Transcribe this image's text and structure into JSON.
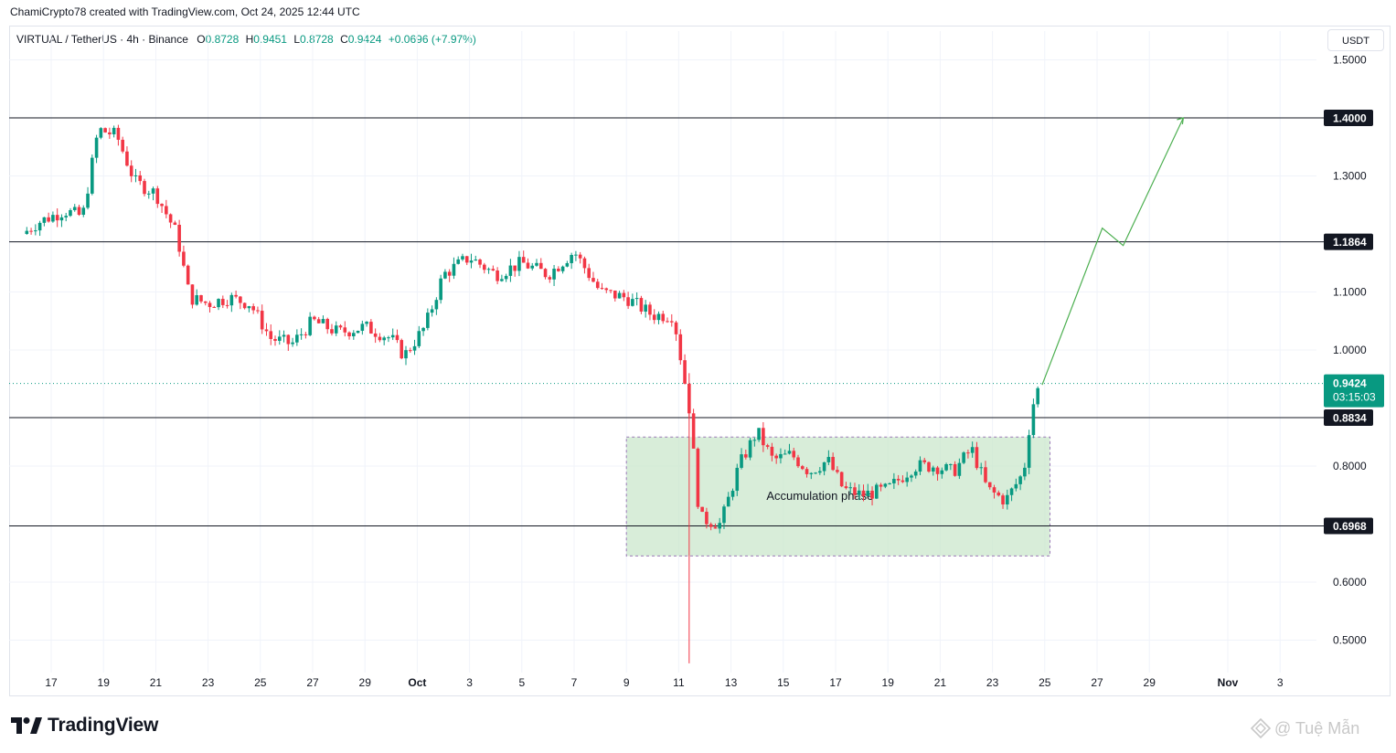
{
  "header": {
    "creator": "ChamiCrypto78 created with TradingView.com, Oct 24, 2025 12:44 UTC"
  },
  "legend": {
    "symbol": "VIRTUAL / TetherUS · 4h · Binance",
    "o_label": "O",
    "o_value": "0.8728",
    "h_label": "H",
    "h_value": "0.9451",
    "l_label": "L",
    "l_value": "0.8728",
    "c_label": "C",
    "c_value": "0.9424",
    "change": "+0.0696 (+7.97%)"
  },
  "currency_button": "USDT",
  "branding": {
    "logo_text": "TradingView"
  },
  "watermark": {
    "text": "@ Tuệ Mẫn"
  },
  "colors": {
    "up": "#089981",
    "down": "#f23645",
    "projection": "#4caf50",
    "zone_fill": "#c8e6c9",
    "zone_border": "#9c7ab8"
  },
  "chart_data": {
    "type": "candlestick",
    "symbol": "VIRTUAL/USDT",
    "timeframe": "4h",
    "y_ticks": [
      "1.5000",
      "1.3000",
      "1.1000",
      "1.0000",
      "0.8000",
      "0.6000",
      "0.5000"
    ],
    "ylim": [
      0.45,
      1.51
    ],
    "x_ticks": [
      {
        "label": "17",
        "day": 17
      },
      {
        "label": "19",
        "day": 19
      },
      {
        "label": "21",
        "day": 21
      },
      {
        "label": "23",
        "day": 23
      },
      {
        "label": "25",
        "day": 25
      },
      {
        "label": "27",
        "day": 27
      },
      {
        "label": "29",
        "day": 29
      },
      {
        "label": "Oct",
        "day": 31
      },
      {
        "label": "3",
        "day": 33
      },
      {
        "label": "5",
        "day": 35
      },
      {
        "label": "7",
        "day": 37
      },
      {
        "label": "9",
        "day": 39
      },
      {
        "label": "11",
        "day": 41
      },
      {
        "label": "13",
        "day": 43
      },
      {
        "label": "15",
        "day": 45
      },
      {
        "label": "17",
        "day": 47
      },
      {
        "label": "19",
        "day": 49
      },
      {
        "label": "21",
        "day": 51
      },
      {
        "label": "23",
        "day": 53
      },
      {
        "label": "25",
        "day": 55
      },
      {
        "label": "27",
        "day": 57
      },
      {
        "label": "29",
        "day": 59
      },
      {
        "label": "Nov",
        "day": 62
      },
      {
        "label": "3",
        "day": 64
      }
    ],
    "price_path": [
      [
        15.9,
        1.2
      ],
      [
        16.5,
        1.22
      ],
      [
        17.5,
        1.24
      ],
      [
        18.2,
        1.23
      ],
      [
        18.8,
        1.38
      ],
      [
        19.5,
        1.37
      ],
      [
        20.2,
        1.29
      ],
      [
        21.0,
        1.27
      ],
      [
        21.8,
        1.2
      ],
      [
        22.3,
        1.09
      ],
      [
        23.0,
        1.08
      ],
      [
        23.8,
        1.09
      ],
      [
        24.6,
        1.08
      ],
      [
        25.4,
        1.02
      ],
      [
        26.2,
        1.01
      ],
      [
        27.0,
        1.05
      ],
      [
        28.0,
        1.03
      ],
      [
        29.0,
        1.04
      ],
      [
        30.0,
        1.02
      ],
      [
        30.5,
        0.99
      ],
      [
        31.3,
        1.04
      ],
      [
        32.0,
        1.13
      ],
      [
        33.0,
        1.16
      ],
      [
        34.0,
        1.13
      ],
      [
        35.0,
        1.15
      ],
      [
        36.0,
        1.13
      ],
      [
        37.0,
        1.17
      ],
      [
        38.0,
        1.1
      ],
      [
        39.0,
        1.09
      ],
      [
        40.0,
        1.06
      ],
      [
        40.8,
        1.06
      ],
      [
        41.4,
        0.9
      ],
      [
        41.8,
        0.71
      ],
      [
        42.6,
        0.7
      ],
      [
        43.3,
        0.8
      ],
      [
        44.0,
        0.86
      ],
      [
        44.6,
        0.81
      ],
      [
        45.3,
        0.82
      ],
      [
        46.0,
        0.79
      ],
      [
        46.7,
        0.81
      ],
      [
        47.3,
        0.76
      ],
      [
        48.0,
        0.75
      ],
      [
        49.0,
        0.76
      ],
      [
        50.0,
        0.8
      ],
      [
        50.8,
        0.8
      ],
      [
        51.5,
        0.79
      ],
      [
        52.2,
        0.83
      ],
      [
        52.8,
        0.76
      ],
      [
        53.5,
        0.74
      ],
      [
        54.2,
        0.79
      ],
      [
        54.5,
        0.9
      ],
      [
        54.8,
        0.94
      ]
    ],
    "drawdown_wick": {
      "day": 41.4,
      "high": 0.96,
      "low": 0.46
    },
    "levels": [
      {
        "price": 1.4,
        "label": "1.4000"
      },
      {
        "price": 1.1864,
        "label": "1.1864"
      },
      {
        "price": 0.8834,
        "label": "0.8834"
      },
      {
        "price": 0.6968,
        "label": "0.6968"
      }
    ],
    "last_price": {
      "price": 0.9424,
      "label": "0.9424",
      "countdown": "03:15:03"
    },
    "zone": {
      "x0": 39.0,
      "x1": 55.2,
      "y0": 0.645,
      "y1": 0.85,
      "label": "Accumulation phase"
    },
    "projection": [
      [
        54.9,
        0.94
      ],
      [
        57.2,
        1.21
      ],
      [
        58.0,
        1.18
      ],
      [
        60.3,
        1.4
      ]
    ]
  }
}
